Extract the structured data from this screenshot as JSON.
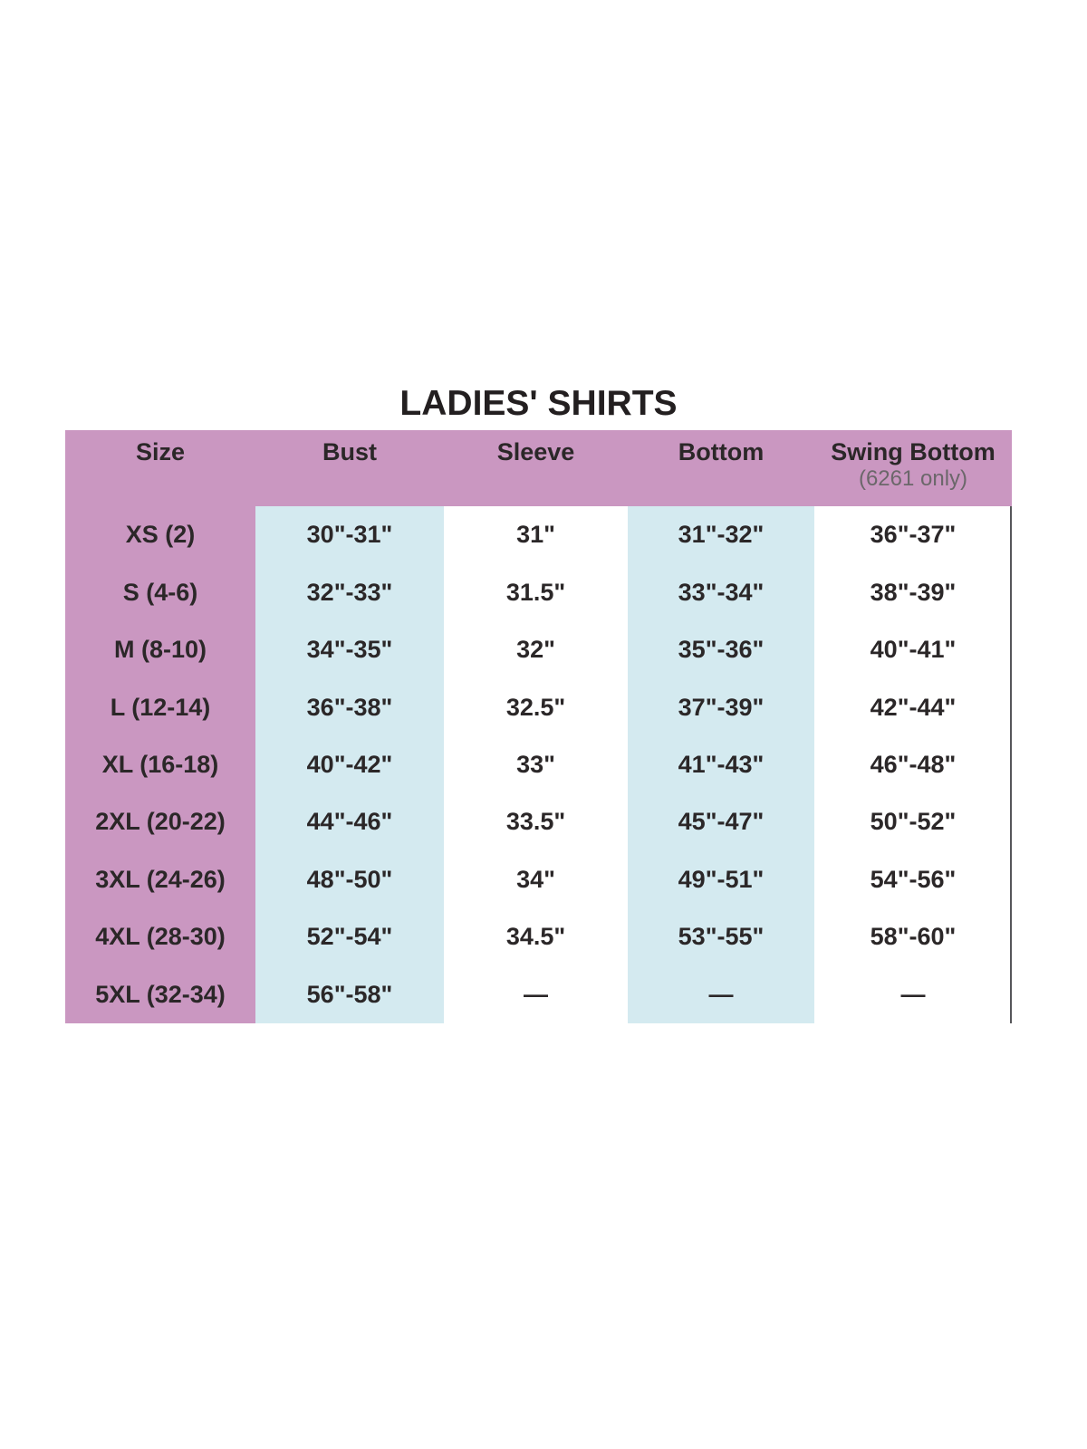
{
  "chart_data": {
    "type": "table",
    "title": "LADIES' SHIRTS",
    "columns": [
      {
        "label": "Size",
        "note": ""
      },
      {
        "label": "Bust",
        "note": ""
      },
      {
        "label": "Sleeve",
        "note": ""
      },
      {
        "label": "Bottom",
        "note": ""
      },
      {
        "label": "Swing Bottom",
        "note": "(6261 only)"
      }
    ],
    "rows": [
      [
        "XS (2)",
        "30\"-31\"",
        "31\"",
        "31\"-32\"",
        "36\"-37\""
      ],
      [
        "S (4-6)",
        "32\"-33\"",
        "31.5\"",
        "33\"-34\"",
        "38\"-39\""
      ],
      [
        "M (8-10)",
        "34\"-35\"",
        "32\"",
        "35\"-36\"",
        "40\"-41\""
      ],
      [
        "L (12-14)",
        "36\"-38\"",
        "32.5\"",
        "37\"-39\"",
        "42\"-44\""
      ],
      [
        "XL (16-18)",
        "40\"-42\"",
        "33\"",
        "41\"-43\"",
        "46\"-48\""
      ],
      [
        "2XL (20-22)",
        "44\"-46\"",
        "33.5\"",
        "45\"-47\"",
        "50\"-52\""
      ],
      [
        "3XL (24-26)",
        "48\"-50\"",
        "34\"",
        "49\"-51\"",
        "54\"-56\""
      ],
      [
        "4XL (28-30)",
        "52\"-54\"",
        "34.5\"",
        "53\"-55\"",
        "58\"-60\""
      ],
      [
        "5XL (32-34)",
        "56\"-58\"",
        "—",
        "—",
        "—"
      ]
    ],
    "layout": {
      "legend": "none",
      "grid": "off",
      "column_stripes": [
        "pink",
        "blue",
        "white",
        "blue",
        "white"
      ]
    }
  },
  "colors": {
    "header_bg": "#ca97c1",
    "size_column_bg": "#ca97c1",
    "stripe_column_bg": "#d4eaf0",
    "text": "#2b2728",
    "note_text": "#6b676a",
    "title_text": "#231f20",
    "right_divider": "#57575b",
    "page_bg": "#ffffff"
  }
}
